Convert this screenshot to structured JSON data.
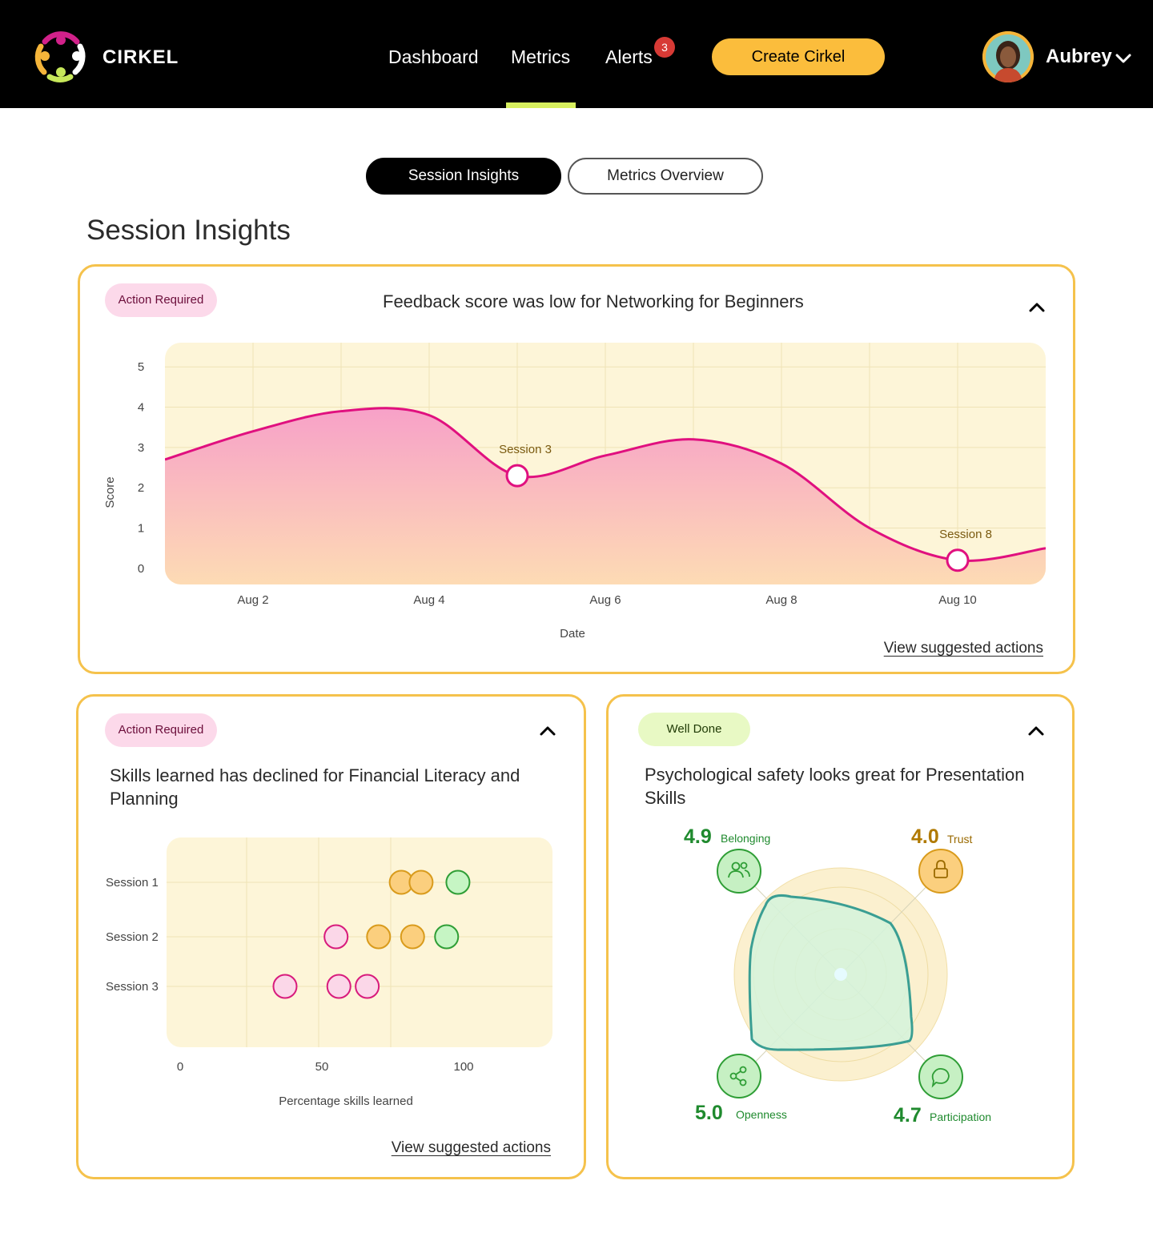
{
  "header": {
    "brand": "CIRKEL",
    "nav": [
      "Dashboard",
      "Metrics",
      "Alerts"
    ],
    "active_nav": "Metrics",
    "alerts_count": "3",
    "create_label": "Create Cirkel",
    "user_name": "Aubrey",
    "colors": {
      "background": "#000000",
      "accent": "#fbbd3c",
      "active_underline": "#d7ef5e",
      "badge": "#d73a35"
    }
  },
  "tabs": [
    {
      "label": "Session Insights",
      "active": true
    },
    {
      "label": "Metrics Overview",
      "active": false
    }
  ],
  "page_title": "Session Insights",
  "cards": {
    "feedback": {
      "badge": "Action Required",
      "title": "Feedback score was low for Networking for Beginners",
      "link": "View suggested actions"
    },
    "skills": {
      "badge": "Action Required",
      "title": "Skills learned has declined for Financial Literacy and Planning",
      "link": "View suggested actions"
    },
    "safety": {
      "badge": "Well Done",
      "title": "Psychological safety looks great for Presentation Skills"
    }
  },
  "chart_data": [
    {
      "type": "area",
      "xlabel": "Date",
      "ylabel": "Score",
      "x_ticks": [
        "Aug 2",
        "Aug 4",
        "Aug 6",
        "Aug 8",
        "Aug 10"
      ],
      "y_ticks": [
        0,
        1,
        2,
        3,
        4,
        5
      ],
      "ylim": [
        -0.4,
        5.6
      ],
      "series": [
        {
          "x": [
            "Aug 1",
            "Aug 2",
            "Aug 3",
            "Aug 4",
            "Aug 5",
            "Aug 6",
            "Aug 7",
            "Aug 8",
            "Aug 9",
            "Aug 10",
            "Aug 11"
          ],
          "values": [
            2.7,
            3.4,
            3.9,
            3.8,
            2.3,
            2.8,
            3.2,
            2.6,
            1.0,
            0.2,
            0.5
          ]
        }
      ],
      "annotations": [
        {
          "label": "Session 3",
          "x": "Aug 5",
          "y": 2.3
        },
        {
          "label": "Session 8",
          "x": "Aug 10",
          "y": 0.2
        }
      ],
      "grid": true,
      "colors": {
        "line": "#e0107f",
        "fill_top": "#f7a1c8",
        "fill_bottom": "#fddbb4",
        "plot_bg": "#fdf5d8"
      }
    },
    {
      "type": "scatter",
      "xlabel": "Percentage skills learned",
      "x_ticks": [
        0,
        50,
        100
      ],
      "xlim": [
        0,
        130
      ],
      "categories": [
        "Session 1",
        "Session 2",
        "Session 3"
      ],
      "points": [
        {
          "session": "Session 1",
          "x": 78,
          "level": "medium"
        },
        {
          "session": "Session 1",
          "x": 85,
          "level": "medium"
        },
        {
          "session": "Session 1",
          "x": 98,
          "level": "high"
        },
        {
          "session": "Session 2",
          "x": 55,
          "level": "low"
        },
        {
          "session": "Session 2",
          "x": 70,
          "level": "medium"
        },
        {
          "session": "Session 2",
          "x": 82,
          "level": "medium"
        },
        {
          "session": "Session 2",
          "x": 94,
          "level": "high"
        },
        {
          "session": "Session 3",
          "x": 37,
          "level": "low"
        },
        {
          "session": "Session 3",
          "x": 56,
          "level": "low"
        },
        {
          "session": "Session 3",
          "x": 66,
          "level": "low"
        }
      ],
      "grid": true,
      "colors": {
        "low": {
          "fill": "#fbd7e8",
          "stroke": "#d81b7c"
        },
        "medium": {
          "fill": "#fbcf7e",
          "stroke": "#d99b1c"
        },
        "high": {
          "fill": "#c6f5c4",
          "stroke": "#2f9e36"
        },
        "plot_bg": "#fdf5d8"
      }
    },
    {
      "type": "radar",
      "axes": [
        {
          "label": "Belonging",
          "value": "4.9",
          "icon": "people-icon",
          "color": "#1f8a2e"
        },
        {
          "label": "Trust",
          "value": "4.0",
          "icon": "lock-icon",
          "color": "#b07900"
        },
        {
          "label": "Participation",
          "value": "4.7",
          "icon": "chat-icon",
          "color": "#1f8a2e"
        },
        {
          "label": "Openness",
          "value": "5.0",
          "icon": "share-icon",
          "color": "#1f8a2e"
        }
      ],
      "max": 5,
      "colors": {
        "shape_stroke": "#3a9e93",
        "shape_fill": "#d4f3dc",
        "rings_bg": "#fbf0cf"
      }
    }
  ]
}
